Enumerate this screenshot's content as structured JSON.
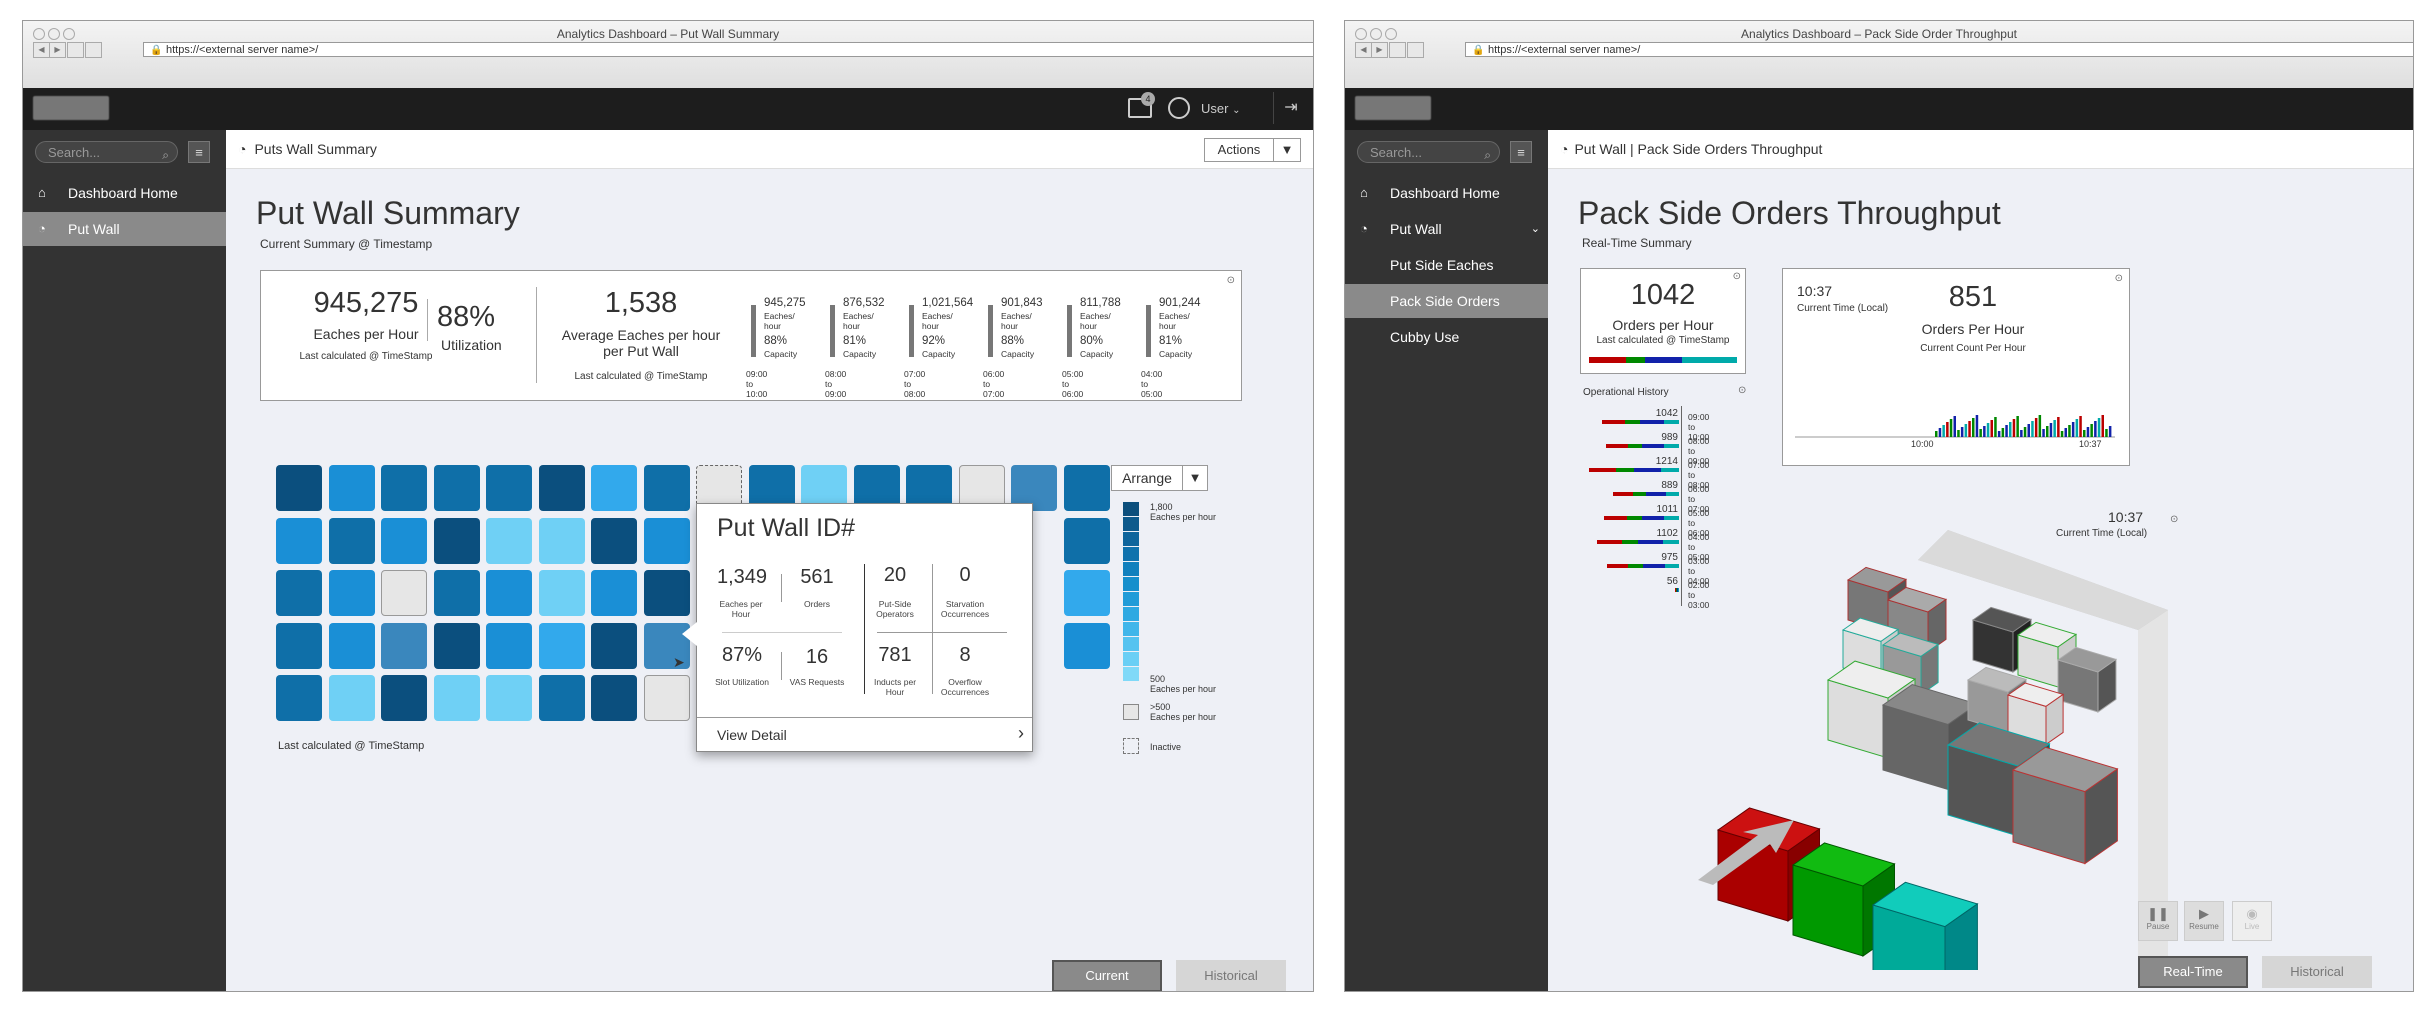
{
  "left": {
    "window_title": "Analytics Dashboard – Put Wall Summary",
    "url": "https://<external server name>/",
    "user_label": "User",
    "notification_count": "4",
    "search_placeholder": "Search...",
    "nav": [
      {
        "label": "Dashboard Home",
        "icon": "home-icon"
      },
      {
        "label": "Put Wall",
        "icon": "gauge-icon"
      }
    ],
    "breadcrumb": "Puts Wall  Summary",
    "actions_label": "Actions",
    "title": "Put Wall Summary",
    "subtitle": "Current Summary @ Timestamp",
    "kpi": {
      "eaches_value": "945,275",
      "eaches_label": "Eaches per Hour",
      "utilization_value": "88%",
      "utilization_label": "Utilization",
      "last_calc_1": "Last calculated @ TimeStamp",
      "avg_value": "1,538",
      "avg_label": "Average Eaches per hour per Put Wall",
      "last_calc_2": "Last calculated @ TimeStamp"
    },
    "capacity": [
      {
        "value": "945,275",
        "unit": "Eaches/ hour",
        "pct": "88%",
        "cap_label": "Capacity",
        "time": "09:00 to 10:00"
      },
      {
        "value": "876,532",
        "unit": "Eaches/ hour",
        "pct": "81%",
        "cap_label": "Capacity",
        "time": "08:00 to 09:00"
      },
      {
        "value": "1,021,564",
        "unit": "Eaches/ hour",
        "pct": "92%",
        "cap_label": "Capacity",
        "time": "07:00 to 08:00"
      },
      {
        "value": "901,843",
        "unit": "Eaches/ hour",
        "pct": "88%",
        "cap_label": "Capacity",
        "time": "06:00 to 07:00"
      },
      {
        "value": "811,788",
        "unit": "Eaches/ hour",
        "pct": "80%",
        "cap_label": "Capacity",
        "time": "05:00 to 06:00"
      },
      {
        "value": "901,244",
        "unit": "Eaches/ hour",
        "pct": "81%",
        "cap_label": "Capacity",
        "time": "04:00 to 05:00"
      }
    ],
    "heatmap_footer": "Last calculated @ TimeStamp",
    "arrange_label": "Arrange",
    "legend": {
      "top_value": "1,800",
      "top_label": "Eaches per hour",
      "bottom_value": "500",
      "bottom_label": "Eaches per hour",
      "over_value": ">500",
      "over_label": "Eaches per hour",
      "inactive_label": "Inactive",
      "scale_colors": [
        "#0c4f7c",
        "#0d5a8c",
        "#0e659c",
        "#0f72ad",
        "#1080bd",
        "#168fcc",
        "#209cd8",
        "#2ea9e2",
        "#40b6ea",
        "#55c3f0",
        "#6acff5",
        "#80d9f8"
      ]
    },
    "colors": {
      "dark": "#0b4f7e",
      "mid": "#0f6fa8",
      "light": "#1a8fd6",
      "lighter": "#32a9ec",
      "pale": "#6fd0f5",
      "steel": "#3a87bd"
    },
    "popup": {
      "title": "Put Wall ID#",
      "eaches_value": "1,349",
      "eaches_label": "Eaches per Hour",
      "orders_value": "561",
      "orders_label": "Orders",
      "operators_value": "20",
      "operators_label": "Put-Side Operators",
      "starvation_value": "0",
      "starvation_label": "Starvation Occurrences",
      "slot_value": "87%",
      "slot_label": "Slot Utilization",
      "vas_value": "16",
      "vas_label": "VAS Requests",
      "inducts_value": "781",
      "inducts_label": "Inducts per Hour",
      "overflow_value": "8",
      "overflow_label": "Overflow Occurrences",
      "view_detail": "View Detail"
    },
    "btn_current": "Current",
    "btn_historical": "Historical"
  },
  "right": {
    "window_title": "Analytics Dashboard – Pack Side Order Throughput",
    "url": "https://<external server name>/",
    "search_placeholder": "Search...",
    "nav": [
      {
        "label": "Dashboard Home",
        "icon": "home-icon"
      },
      {
        "label": "Put Wall",
        "icon": "gauge-icon"
      },
      {
        "label": "Put Side Eaches"
      },
      {
        "label": "Pack Side Orders"
      },
      {
        "label": "Cubby Use"
      }
    ],
    "breadcrumb": "Put Wall  |  Pack Side Orders Throughput",
    "title": "Pack Side Orders Throughput",
    "subtitle": "Real-Time Summary",
    "orders_value": "1042",
    "orders_label": "Orders per Hour",
    "orders_last_calc": "Last calculated @ TimeStamp",
    "op_history_title": "Operational History",
    "history": [
      {
        "value": "1042",
        "time": "09:00 to 10:00"
      },
      {
        "value": "989",
        "time": "08:00 to 09:00"
      },
      {
        "value": "1214",
        "time": "07:00 to 08:00"
      },
      {
        "value": "889",
        "time": "06:00 to 07:00"
      },
      {
        "value": "1011",
        "time": "05:00 to 06:00"
      },
      {
        "value": "1102",
        "time": "04:00 to 05:00"
      },
      {
        "value": "975",
        "time": "03:00 to 04:00"
      },
      {
        "value": "56",
        "time": "02:00 to 03:00"
      }
    ],
    "rt": {
      "time_value": "10:37",
      "time_label": "Current Time (Local)",
      "count_value": "851",
      "count_label": "Orders Per Hour",
      "count_sub": "Current Count Per Hour",
      "axis_start": "10:00",
      "axis_end": "10:37"
    },
    "viz_time_value": "10:37",
    "viz_time_label": "Current Time (Local)",
    "controls": {
      "pause": "Pause",
      "resume": "Resume",
      "live": "Live"
    },
    "btn_realtime": "Real-Time",
    "btn_historical": "Historical"
  }
}
